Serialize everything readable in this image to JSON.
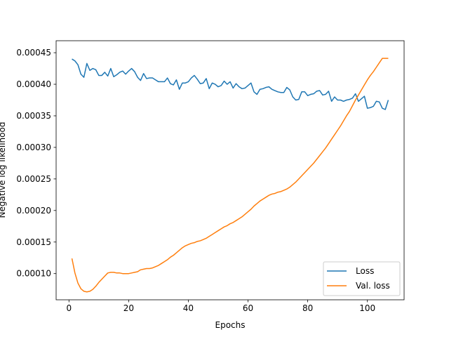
{
  "chart_data": {
    "type": "line",
    "title": "",
    "xlabel": "Epochs",
    "ylabel": "Negative log likelihood",
    "xlim": [
      -4.3,
      112.3
    ],
    "ylim": [
      5.85e-05,
      0.000469
    ],
    "xticks": [
      0,
      20,
      40,
      60,
      80,
      100
    ],
    "xtick_labels": [
      "0",
      "20",
      "40",
      "60",
      "80",
      "100"
    ],
    "yticks": [
      0.0001,
      0.00015,
      0.0002,
      0.00025,
      0.0003,
      0.00035,
      0.0004,
      0.00045
    ],
    "ytick_labels": [
      "0.00010",
      "0.00015",
      "0.00020",
      "0.00025",
      "0.00030",
      "0.00035",
      "0.00040",
      "0.00045"
    ],
    "grid": false,
    "legend_position": "lower-right",
    "x": [
      1,
      2,
      3,
      4,
      5,
      6,
      7,
      8,
      9,
      10,
      11,
      12,
      13,
      14,
      15,
      16,
      17,
      18,
      19,
      20,
      21,
      22,
      23,
      24,
      25,
      26,
      27,
      28,
      29,
      30,
      31,
      32,
      33,
      34,
      35,
      36,
      37,
      38,
      39,
      40,
      41,
      42,
      43,
      44,
      45,
      46,
      47,
      48,
      49,
      50,
      51,
      52,
      53,
      54,
      55,
      56,
      57,
      58,
      59,
      60,
      61,
      62,
      63,
      64,
      65,
      66,
      67,
      68,
      69,
      70,
      71,
      72,
      73,
      74,
      75,
      76,
      77,
      78,
      79,
      80,
      81,
      82,
      83,
      84,
      85,
      86,
      87,
      88,
      89,
      90,
      91,
      92,
      93,
      94,
      95,
      96,
      97,
      98,
      99,
      100,
      101,
      102,
      103,
      104,
      105,
      106,
      107
    ],
    "series": [
      {
        "name": "Loss",
        "color": "#1f77b4",
        "values": [
          0.00044,
          0.000437,
          0.000431,
          0.000416,
          0.000411,
          0.000433,
          0.000422,
          0.000425,
          0.000423,
          0.000414,
          0.000414,
          0.000419,
          0.000413,
          0.000425,
          0.000412,
          0.000415,
          0.000419,
          0.000421,
          0.000416,
          0.000421,
          0.000425,
          0.00042,
          0.000411,
          0.000406,
          0.000417,
          0.000409,
          0.00041,
          0.00041,
          0.000407,
          0.000404,
          0.000404,
          0.000404,
          0.00041,
          0.000401,
          0.000399,
          0.000407,
          0.000392,
          0.000402,
          0.000402,
          0.000404,
          0.00041,
          0.000414,
          0.000408,
          0.000401,
          0.000402,
          0.000409,
          0.000393,
          0.000402,
          0.0004,
          0.000396,
          0.000398,
          0.000405,
          0.0004,
          0.000404,
          0.000394,
          0.000401,
          0.000396,
          0.000393,
          0.000394,
          0.000398,
          0.000402,
          0.000388,
          0.000384,
          0.000392,
          0.000393,
          0.000395,
          0.000396,
          0.000392,
          0.00039,
          0.000388,
          0.000387,
          0.000387,
          0.000395,
          0.000391,
          0.00038,
          0.000375,
          0.000376,
          0.000388,
          0.000388,
          0.000382,
          0.000384,
          0.000385,
          0.000389,
          0.00039,
          0.000383,
          0.000384,
          0.000389,
          0.000373,
          0.00038,
          0.000375,
          0.000375,
          0.000373,
          0.000375,
          0.000376,
          0.000378,
          0.000385,
          0.000373,
          0.000377,
          0.000381,
          0.000362,
          0.000363,
          0.000365,
          0.000373,
          0.000372,
          0.000362,
          0.00036,
          0.000375
        ]
      },
      {
        "name": "Val. loss",
        "color": "#ff7f0e",
        "values": [
          0.000124,
          0.000101,
          8.5e-05,
          7.6e-05,
          7.2e-05,
          7.1e-05,
          7.2e-05,
          7.5e-05,
          8e-05,
          8.6e-05,
          9.1e-05,
          9.6e-05,
          0.000101,
          0.000102,
          0.000102,
          0.000101,
          0.000101,
          0.0001,
          0.0001,
          0.0001,
          0.000101,
          0.000102,
          0.000103,
          0.000106,
          0.000107,
          0.000108,
          0.000108,
          0.000109,
          0.000111,
          0.000113,
          0.000116,
          0.000119,
          0.000122,
          0.000126,
          0.000129,
          0.000133,
          0.000137,
          0.000141,
          0.000144,
          0.000146,
          0.000148,
          0.000149,
          0.000151,
          0.000152,
          0.000154,
          0.000156,
          0.000159,
          0.000162,
          0.000165,
          0.000168,
          0.000171,
          0.000174,
          0.000176,
          0.000179,
          0.000181,
          0.000184,
          0.000187,
          0.00019,
          0.000194,
          0.000198,
          0.000202,
          0.000207,
          0.000211,
          0.000215,
          0.000218,
          0.000221,
          0.000224,
          0.000226,
          0.000227,
          0.000229,
          0.00023,
          0.000232,
          0.000234,
          0.000237,
          0.000241,
          0.000245,
          0.00025,
          0.000255,
          0.00026,
          0.000265,
          0.00027,
          0.000275,
          0.000281,
          0.000287,
          0.000293,
          0.000299,
          0.000306,
          0.000313,
          0.00032,
          0.000327,
          0.000334,
          0.000342,
          0.00035,
          0.000357,
          0.000366,
          0.000375,
          0.000383,
          0.000391,
          0.000399,
          0.000407,
          0.000414,
          0.00042,
          0.000427,
          0.000434,
          0.000441,
          0.000441,
          0.000441
        ]
      }
    ]
  }
}
